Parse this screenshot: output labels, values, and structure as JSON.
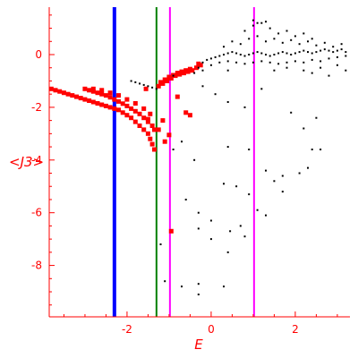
{
  "chart_data": {
    "type": "scatter",
    "title": "",
    "xlabel": "E",
    "ylabel": "<J3>",
    "xlim": [
      -3.85,
      3.3
    ],
    "ylim": [
      -9.95,
      1.8
    ],
    "xticks": [
      -2,
      0,
      2
    ],
    "yticks": [
      0,
      -2,
      -4,
      -6,
      -8
    ],
    "axis_color": "#ff0000",
    "tick_label_color": "#ff0000",
    "vertical_lines": [
      {
        "x": -2.3,
        "color": "#0000ff"
      },
      {
        "x": -1.3,
        "color": "#008000"
      },
      {
        "x": -0.98,
        "color": "#ff00ff"
      },
      {
        "x": 1.02,
        "color": "#ff00ff"
      }
    ],
    "series": [
      {
        "color": "#ff0000",
        "points": [
          [
            -3.8,
            -1.3
          ],
          [
            -3.7,
            -1.35
          ],
          [
            -3.6,
            -1.4
          ],
          [
            -3.5,
            -1.45
          ],
          [
            -3.4,
            -1.5
          ],
          [
            -3.3,
            -1.55
          ],
          [
            -3.2,
            -1.6
          ],
          [
            -3.1,
            -1.65
          ],
          [
            -3.0,
            -1.7
          ],
          [
            -2.9,
            -1.75
          ],
          [
            -2.8,
            -1.8
          ],
          [
            -2.7,
            -1.85
          ],
          [
            -2.6,
            -1.9
          ],
          [
            -2.5,
            -1.95
          ],
          [
            -2.4,
            -2.0
          ],
          [
            -2.3,
            -2.05
          ],
          [
            -2.2,
            -2.1
          ],
          [
            -2.1,
            -2.2
          ],
          [
            -2.0,
            -2.3
          ],
          [
            -1.9,
            -2.4
          ],
          [
            -1.8,
            -2.55
          ],
          [
            -1.7,
            -2.7
          ],
          [
            -1.6,
            -2.85
          ],
          [
            -1.5,
            -3.0
          ],
          [
            -1.45,
            -3.2
          ],
          [
            -1.4,
            -3.4
          ],
          [
            -1.35,
            -3.6
          ],
          [
            -3.0,
            -1.3
          ],
          [
            -2.9,
            -1.35
          ],
          [
            -2.8,
            -1.4
          ],
          [
            -2.7,
            -1.45
          ],
          [
            -2.6,
            -1.5
          ],
          [
            -2.5,
            -1.55
          ],
          [
            -2.4,
            -1.62
          ],
          [
            -2.3,
            -1.7
          ],
          [
            -2.2,
            -1.78
          ],
          [
            -2.1,
            -1.86
          ],
          [
            -2.0,
            -1.95
          ],
          [
            -1.9,
            -2.05
          ],
          [
            -1.8,
            -2.15
          ],
          [
            -1.7,
            -2.25
          ],
          [
            -1.6,
            -2.4
          ],
          [
            -1.5,
            -2.55
          ],
          [
            -1.4,
            -2.7
          ],
          [
            -1.35,
            -2.85
          ],
          [
            -2.8,
            -1.3
          ],
          [
            -2.6,
            -1.35
          ],
          [
            -2.4,
            -1.45
          ],
          [
            -2.2,
            -1.55
          ],
          [
            -2.0,
            -1.7
          ],
          [
            -1.8,
            -1.85
          ],
          [
            -1.6,
            -2.05
          ],
          [
            -1.45,
            -2.25
          ],
          [
            -1.25,
            -1.2
          ],
          [
            -1.15,
            -1.1
          ],
          [
            -1.05,
            -1.0
          ],
          [
            -0.95,
            -0.9
          ],
          [
            -0.85,
            -0.8
          ],
          [
            -0.75,
            -0.75
          ],
          [
            -0.65,
            -0.7
          ],
          [
            -0.55,
            -0.65
          ],
          [
            -0.45,
            -0.6
          ],
          [
            -0.35,
            -0.5
          ],
          [
            -0.25,
            -0.4
          ],
          [
            -1.2,
            -1.05
          ],
          [
            -1.1,
            -0.95
          ],
          [
            -1.0,
            -0.85
          ],
          [
            -0.9,
            -0.78
          ],
          [
            -0.8,
            -0.7
          ],
          [
            -0.7,
            -0.65
          ],
          [
            -0.6,
            -0.6
          ],
          [
            -0.5,
            -0.55
          ],
          [
            -1.55,
            -1.3
          ],
          [
            -1.5,
            -2.45
          ],
          [
            -1.25,
            -2.85
          ],
          [
            -1.15,
            -2.5
          ],
          [
            -1.1,
            -3.3
          ],
          [
            -1.0,
            -3.05
          ],
          [
            -0.95,
            -6.7
          ],
          [
            -0.6,
            -2.2
          ],
          [
            -0.5,
            -2.3
          ],
          [
            -0.8,
            -1.6
          ],
          [
            -0.3,
            -0.35
          ]
        ]
      },
      {
        "color": "#000000",
        "points": [
          [
            -1.9,
            -1.0
          ],
          [
            -1.8,
            -1.05
          ],
          [
            -1.7,
            -1.1
          ],
          [
            -1.6,
            -1.15
          ],
          [
            -1.5,
            -1.2
          ],
          [
            -1.4,
            -1.25
          ],
          [
            -1.3,
            -1.3
          ],
          [
            -0.4,
            -0.7
          ],
          [
            -0.3,
            -0.5
          ],
          [
            -0.2,
            -0.3
          ],
          [
            -0.1,
            -0.2
          ],
          [
            0.0,
            -0.15
          ],
          [
            0.1,
            -0.1
          ],
          [
            0.2,
            -0.05
          ],
          [
            0.3,
            0.0
          ],
          [
            0.4,
            0.05
          ],
          [
            0.5,
            0.1
          ],
          [
            0.6,
            0.05
          ],
          [
            0.7,
            0.0
          ],
          [
            0.8,
            -0.05
          ],
          [
            0.9,
            0.0
          ],
          [
            1.0,
            0.05
          ],
          [
            1.1,
            0.1
          ],
          [
            1.2,
            0.05
          ],
          [
            1.3,
            0.0
          ],
          [
            1.4,
            -0.05
          ],
          [
            1.5,
            0.0
          ],
          [
            1.6,
            0.05
          ],
          [
            1.7,
            0.1
          ],
          [
            1.8,
            0.05
          ],
          [
            1.9,
            0.0
          ],
          [
            2.0,
            0.05
          ],
          [
            2.1,
            0.1
          ],
          [
            2.2,
            0.15
          ],
          [
            2.3,
            0.1
          ],
          [
            2.4,
            0.05
          ],
          [
            2.5,
            0.1
          ],
          [
            2.6,
            0.15
          ],
          [
            2.7,
            0.2
          ],
          [
            2.8,
            0.15
          ],
          [
            2.9,
            0.1
          ],
          [
            3.0,
            0.15
          ],
          [
            3.1,
            0.2
          ],
          [
            3.2,
            0.1
          ],
          [
            -0.2,
            -0.6
          ],
          [
            0.0,
            -0.4
          ],
          [
            0.2,
            -0.3
          ],
          [
            0.4,
            -0.25
          ],
          [
            0.6,
            -0.3
          ],
          [
            0.8,
            -0.35
          ],
          [
            1.0,
            -0.3
          ],
          [
            1.2,
            -0.25
          ],
          [
            1.4,
            -0.3
          ],
          [
            1.6,
            -0.35
          ],
          [
            1.8,
            -0.3
          ],
          [
            2.0,
            -0.25
          ],
          [
            2.2,
            -0.3
          ],
          [
            2.4,
            -0.2
          ],
          [
            2.6,
            -0.25
          ],
          [
            2.8,
            -0.15
          ],
          [
            3.0,
            -0.1
          ],
          [
            3.2,
            -0.05
          ],
          [
            0.3,
            0.3
          ],
          [
            0.5,
            0.5
          ],
          [
            0.7,
            0.4
          ],
          [
            0.9,
            0.6
          ],
          [
            1.1,
            0.7
          ],
          [
            1.3,
            0.5
          ],
          [
            1.5,
            0.6
          ],
          [
            1.7,
            0.45
          ],
          [
            1.9,
            0.55
          ],
          [
            2.1,
            0.4
          ],
          [
            2.3,
            0.5
          ],
          [
            2.5,
            0.35
          ],
          [
            2.7,
            0.45
          ],
          [
            2.9,
            0.3
          ],
          [
            3.1,
            0.4
          ],
          [
            0.8,
            0.9
          ],
          [
            1.0,
            1.1
          ],
          [
            1.2,
            1.2
          ],
          [
            1.4,
            1.0
          ],
          [
            1.6,
            0.8
          ],
          [
            1.8,
            0.9
          ],
          [
            2.0,
            0.7
          ],
          [
            2.2,
            0.8
          ],
          [
            2.4,
            0.6
          ],
          [
            1.0,
            1.3
          ],
          [
            1.1,
            1.2
          ],
          [
            1.3,
            1.25
          ],
          [
            2.2,
            -0.6
          ],
          [
            2.4,
            -0.7
          ],
          [
            2.6,
            -0.5
          ],
          [
            2.8,
            -0.8
          ],
          [
            3.0,
            -0.4
          ],
          [
            3.2,
            -0.6
          ],
          [
            1.5,
            -0.6
          ],
          [
            1.8,
            -0.5
          ],
          [
            0.4,
            -0.6
          ],
          [
            -0.9,
            -0.8
          ],
          [
            -0.2,
            -1.2
          ],
          [
            0.1,
            -1.5
          ],
          [
            0.4,
            -1.8
          ],
          [
            0.8,
            -2.0
          ],
          [
            1.2,
            -1.3
          ],
          [
            1.9,
            -2.2
          ],
          [
            2.5,
            -2.4
          ],
          [
            -0.9,
            -3.6
          ],
          [
            -0.7,
            -3.3
          ],
          [
            -0.4,
            -4.0
          ],
          [
            0.4,
            -3.5
          ],
          [
            0.9,
            -3.6
          ],
          [
            1.3,
            -4.4
          ],
          [
            1.7,
            -4.6
          ],
          [
            2.1,
            -4.5
          ],
          [
            2.3,
            -4.3
          ],
          [
            2.4,
            -3.6
          ],
          [
            2.6,
            -3.6
          ],
          [
            2.2,
            -2.8
          ],
          [
            0.3,
            -4.9
          ],
          [
            0.6,
            -5.0
          ],
          [
            0.9,
            -5.3
          ],
          [
            1.5,
            -4.8
          ],
          [
            1.7,
            -5.2
          ],
          [
            1.3,
            -6.1
          ],
          [
            1.1,
            -5.9
          ],
          [
            0.7,
            -6.5
          ],
          [
            0.8,
            -6.9
          ],
          [
            0.45,
            -6.7
          ],
          [
            0.0,
            -6.3
          ],
          [
            -0.3,
            -6.0
          ],
          [
            -0.6,
            -5.5
          ],
          [
            -0.3,
            -6.6
          ],
          [
            0.0,
            -7.0
          ],
          [
            0.4,
            -7.5
          ],
          [
            -1.1,
            -8.6
          ],
          [
            -0.7,
            -8.8
          ],
          [
            -0.3,
            -9.1
          ],
          [
            -0.3,
            -8.7
          ],
          [
            0.3,
            -8.8
          ],
          [
            -1.2,
            -7.2
          ]
        ]
      }
    ]
  }
}
